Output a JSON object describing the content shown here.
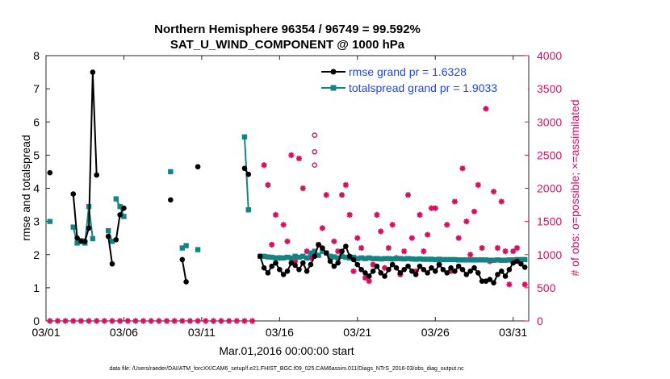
{
  "chart_data": {
    "type": "line",
    "title": "Northern Hemisphere 96354 / 96749 = 99.592%",
    "subtitle": "SAT_U_WIND_COMPONENT @ 1000 hPa",
    "xlabel": "Mar.01,2016 00:00:00 start",
    "ylabel_left": "rmse and totalspread",
    "ylabel_right": "# of obs: o=possible; ×=assimilated",
    "footer": "data file: /Users/raeder/DAI/ATM_forcXX/CAM6_setup/f.e21.FHIST_BGC.f09_025.CAM6assim.011/Diags_NTrS_2016-03/obs_diag_output.nc",
    "xlim": [
      1,
      32
    ],
    "ylim_left": [
      0,
      8
    ],
    "ylim_right": [
      0,
      4000
    ],
    "x_ticks": [
      1,
      6,
      11,
      16,
      21,
      26,
      31
    ],
    "x_tick_labels": [
      "03/01",
      "03/06",
      "03/11",
      "03/16",
      "03/21",
      "03/26",
      "03/31"
    ],
    "y_ticks_left": [
      "0",
      "1",
      "2",
      "3",
      "4",
      "5",
      "6",
      "7",
      "8"
    ],
    "y_ticks_right": [
      "0",
      "500",
      "1000",
      "1500",
      "2000",
      "2500",
      "3000",
      "3500",
      "4000"
    ],
    "colors": {
      "rmse": "#000000",
      "spread": "#138484",
      "obs": "#d6105f",
      "right_axis": "#d6105f",
      "legend_text": "#1a46f0"
    },
    "legend": [
      {
        "name": "rmse",
        "label": "rmse grand pr = 1.6328"
      },
      {
        "name": "spread",
        "label": "totalspread grand pr = 1.9033"
      }
    ],
    "series": {
      "rmse": [
        [
          [
            1.25,
            4.47
          ]
        ],
        [
          [
            2.75,
            3.83
          ],
          [
            3.0,
            2.5
          ],
          [
            3.25,
            2.4
          ],
          [
            3.5,
            2.4
          ],
          [
            3.75,
            2.8
          ],
          [
            4.0,
            7.5
          ],
          [
            4.25,
            4.4
          ]
        ],
        [
          [
            5.0,
            2.55
          ],
          [
            5.25,
            1.72
          ]
        ],
        [
          [
            5.5,
            2.45
          ],
          [
            5.75,
            3.2
          ],
          [
            6.0,
            3.4
          ]
        ],
        [
          [
            9.0,
            3.65
          ]
        ],
        [
          [
            9.75,
            1.85
          ],
          [
            10.0,
            1.18
          ]
        ],
        [
          [
            10.75,
            4.65
          ]
        ],
        [
          [
            13.75,
            4.6
          ],
          [
            14.0,
            4.42
          ]
        ],
        [
          [
            14.75,
            1.95
          ],
          [
            15.0,
            1.6
          ],
          [
            15.25,
            1.45
          ],
          [
            15.5,
            1.65
          ],
          [
            15.75,
            1.75
          ],
          [
            16.0,
            1.55
          ],
          [
            16.25,
            1.4
          ],
          [
            16.5,
            1.5
          ],
          [
            16.75,
            1.75
          ],
          [
            17.0,
            1.68
          ],
          [
            17.25,
            1.55
          ],
          [
            17.5,
            1.75
          ],
          [
            17.75,
            1.5
          ],
          [
            18.0,
            1.7
          ],
          [
            18.25,
            1.95
          ],
          [
            18.5,
            2.3
          ],
          [
            18.75,
            2.2
          ],
          [
            19.0,
            2.05
          ],
          [
            19.25,
            1.8
          ],
          [
            19.5,
            1.65
          ],
          [
            19.75,
            1.75
          ],
          [
            20.0,
            2.1
          ],
          [
            20.25,
            2.25
          ],
          [
            20.5,
            1.95
          ],
          [
            20.75,
            1.85
          ],
          [
            21.0,
            1.7
          ],
          [
            21.25,
            1.55
          ],
          [
            21.5,
            1.45
          ],
          [
            21.75,
            1.35
          ],
          [
            22.0,
            1.5
          ],
          [
            22.25,
            1.65
          ],
          [
            22.5,
            1.45
          ],
          [
            22.75,
            1.35
          ],
          [
            23.0,
            1.55
          ],
          [
            23.25,
            1.7
          ],
          [
            23.5,
            1.6
          ],
          [
            23.75,
            1.45
          ],
          [
            24.0,
            1.55
          ],
          [
            24.25,
            1.65
          ],
          [
            24.5,
            1.5
          ],
          [
            24.75,
            1.4
          ],
          [
            25.0,
            1.65
          ],
          [
            25.25,
            1.55
          ],
          [
            25.5,
            1.45
          ],
          [
            25.75,
            1.6
          ],
          [
            26.0,
            1.5
          ],
          [
            26.25,
            1.7
          ],
          [
            26.5,
            1.55
          ],
          [
            26.75,
            1.45
          ],
          [
            27.0,
            1.6
          ],
          [
            27.25,
            1.5
          ],
          [
            27.5,
            1.65
          ],
          [
            27.75,
            1.55
          ],
          [
            28.0,
            1.4
          ],
          [
            28.25,
            1.5
          ],
          [
            28.5,
            1.6
          ],
          [
            28.75,
            1.45
          ],
          [
            29.0,
            1.2
          ],
          [
            29.25,
            1.2
          ],
          [
            29.5,
            1.25
          ],
          [
            29.75,
            1.15
          ],
          [
            30.0,
            1.4
          ],
          [
            30.25,
            1.5
          ],
          [
            30.5,
            1.35
          ],
          [
            30.75,
            1.55
          ],
          [
            31.0,
            1.75
          ],
          [
            31.25,
            1.8
          ],
          [
            31.5,
            1.72
          ],
          [
            31.75,
            1.62
          ]
        ]
      ],
      "spread": [
        [
          [
            1.25,
            3.0
          ]
        ],
        [
          [
            2.75,
            2.83
          ],
          [
            3.0,
            2.35
          ],
          [
            3.25,
            2.42
          ],
          [
            3.5,
            2.35
          ],
          [
            3.75,
            3.45
          ],
          [
            4.0,
            2.48
          ]
        ],
        [
          [
            5.0,
            2.72
          ],
          [
            5.25,
            2.4
          ]
        ],
        [
          [
            5.5,
            3.68
          ],
          [
            5.75,
            3.45
          ],
          [
            6.0,
            3.15
          ]
        ],
        [
          [
            9.0,
            4.5
          ]
        ],
        [
          [
            9.75,
            2.2
          ],
          [
            10.0,
            2.27
          ]
        ],
        [
          [
            10.75,
            2.15
          ]
        ],
        [
          [
            13.75,
            5.55
          ],
          [
            14.0,
            3.35
          ]
        ],
        [
          [
            14.75,
            1.95
          ],
          [
            15.0,
            1.95
          ],
          [
            15.25,
            1.93
          ],
          [
            15.5,
            1.92
          ],
          [
            15.75,
            1.9
          ],
          [
            16.0,
            1.9
          ],
          [
            16.25,
            1.9
          ],
          [
            16.5,
            1.92
          ],
          [
            16.75,
            1.9
          ],
          [
            17.0,
            1.95
          ],
          [
            17.25,
            1.92
          ],
          [
            17.5,
            1.95
          ],
          [
            17.75,
            1.9
          ],
          [
            18.0,
            2.05
          ],
          [
            18.25,
            2.1
          ],
          [
            18.5,
            1.98
          ],
          [
            18.75,
            2.1
          ],
          [
            19.0,
            2.05
          ],
          [
            19.25,
            1.95
          ],
          [
            19.5,
            1.93
          ],
          [
            19.75,
            1.9
          ],
          [
            20.0,
            1.95
          ],
          [
            20.25,
            1.92
          ],
          [
            20.5,
            1.9
          ],
          [
            20.75,
            1.92
          ],
          [
            21.0,
            1.88
          ],
          [
            21.25,
            1.9
          ],
          [
            21.5,
            1.88
          ],
          [
            21.75,
            1.9
          ],
          [
            22.0,
            1.88
          ],
          [
            22.25,
            1.88
          ],
          [
            22.5,
            1.87
          ],
          [
            22.75,
            1.88
          ],
          [
            23.0,
            1.88
          ],
          [
            23.25,
            1.87
          ],
          [
            23.5,
            1.88
          ],
          [
            23.75,
            1.88
          ],
          [
            24.0,
            1.87
          ],
          [
            24.25,
            1.88
          ],
          [
            24.5,
            1.87
          ],
          [
            24.75,
            1.86
          ],
          [
            25.0,
            1.87
          ],
          [
            25.25,
            1.86
          ],
          [
            25.5,
            1.86
          ],
          [
            25.75,
            1.86
          ],
          [
            26.0,
            1.85
          ],
          [
            26.25,
            1.86
          ],
          [
            26.5,
            1.85
          ],
          [
            26.75,
            1.85
          ],
          [
            27.0,
            1.85
          ],
          [
            27.25,
            1.85
          ],
          [
            27.5,
            1.84
          ],
          [
            27.75,
            1.84
          ],
          [
            28.0,
            1.84
          ],
          [
            28.25,
            1.84
          ],
          [
            28.5,
            1.84
          ],
          [
            28.75,
            1.84
          ],
          [
            29.0,
            1.84
          ],
          [
            29.25,
            1.84
          ],
          [
            29.5,
            1.83
          ],
          [
            29.75,
            1.83
          ],
          [
            30.0,
            1.84
          ],
          [
            30.25,
            1.83
          ],
          [
            30.5,
            1.83
          ],
          [
            30.75,
            1.84
          ],
          [
            31.0,
            1.84
          ],
          [
            31.25,
            1.85
          ],
          [
            31.5,
            1.85
          ],
          [
            31.75,
            1.85
          ]
        ]
      ]
    },
    "obs_possible": [
      [
        18.25,
        2800
      ],
      [
        18.25,
        2350
      ],
      [
        18.25,
        2550
      ],
      [
        29.25,
        3700
      ]
    ],
    "obs_assimilated": [
      [
        1.25,
        0
      ],
      [
        1.75,
        0
      ],
      [
        2.25,
        0
      ],
      [
        2.75,
        0
      ],
      [
        3.25,
        0
      ],
      [
        3.75,
        0
      ],
      [
        4.25,
        0
      ],
      [
        4.75,
        0
      ],
      [
        5.25,
        0
      ],
      [
        5.75,
        0
      ],
      [
        6.25,
        0
      ],
      [
        6.75,
        0
      ],
      [
        7.25,
        0
      ],
      [
        7.75,
        0
      ],
      [
        8.25,
        0
      ],
      [
        8.75,
        0
      ],
      [
        9.25,
        0
      ],
      [
        9.75,
        0
      ],
      [
        10.25,
        0
      ],
      [
        10.75,
        0
      ],
      [
        11.25,
        0
      ],
      [
        11.75,
        0
      ],
      [
        12.25,
        0
      ],
      [
        12.75,
        0
      ],
      [
        13.25,
        0
      ],
      [
        13.75,
        0
      ],
      [
        14.25,
        0
      ],
      [
        15.0,
        2350
      ],
      [
        15.25,
        2050
      ],
      [
        15.5,
        1150
      ],
      [
        15.75,
        1600
      ],
      [
        16.0,
        950
      ],
      [
        16.25,
        1450
      ],
      [
        16.5,
        1200
      ],
      [
        16.75,
        2500
      ],
      [
        17.0,
        900
      ],
      [
        17.25,
        2450
      ],
      [
        17.5,
        2000
      ],
      [
        17.75,
        1050
      ],
      [
        18.0,
        950
      ],
      [
        18.25,
        1000
      ],
      [
        18.5,
        1150
      ],
      [
        18.75,
        1400
      ],
      [
        19.0,
        1900
      ],
      [
        19.25,
        950
      ],
      [
        19.5,
        1200
      ],
      [
        19.75,
        1050
      ],
      [
        20.0,
        1900
      ],
      [
        20.25,
        2050
      ],
      [
        20.5,
        1600
      ],
      [
        20.75,
        750
      ],
      [
        21.0,
        1250
      ],
      [
        21.25,
        1100
      ],
      [
        21.5,
        650
      ],
      [
        21.75,
        600
      ],
      [
        22.0,
        850
      ],
      [
        22.25,
        1600
      ],
      [
        22.5,
        1350
      ],
      [
        22.75,
        800
      ],
      [
        23.0,
        1100
      ],
      [
        23.25,
        1450
      ],
      [
        23.5,
        950
      ],
      [
        23.75,
        700
      ],
      [
        24.0,
        1050
      ],
      [
        24.25,
        1900
      ],
      [
        24.5,
        1250
      ],
      [
        24.75,
        750
      ],
      [
        25.0,
        1600
      ],
      [
        25.25,
        1050
      ],
      [
        25.5,
        1300
      ],
      [
        25.75,
        1700
      ],
      [
        26.0,
        1700
      ],
      [
        26.25,
        850
      ],
      [
        26.75,
        1450
      ],
      [
        27.0,
        750
      ],
      [
        27.25,
        1800
      ],
      [
        27.5,
        1250
      ],
      [
        27.75,
        2300
      ],
      [
        28.0,
        1500
      ],
      [
        28.25,
        1000
      ],
      [
        28.5,
        1650
      ],
      [
        28.75,
        2050
      ],
      [
        29.0,
        1100
      ],
      [
        29.25,
        3200
      ],
      [
        29.5,
        900
      ],
      [
        29.75,
        1950
      ],
      [
        30.0,
        1100
      ],
      [
        30.25,
        1800
      ],
      [
        30.5,
        1050
      ],
      [
        30.75,
        550
      ],
      [
        31.0,
        1050
      ],
      [
        31.25,
        1100
      ],
      [
        31.75,
        550
      ]
    ]
  }
}
